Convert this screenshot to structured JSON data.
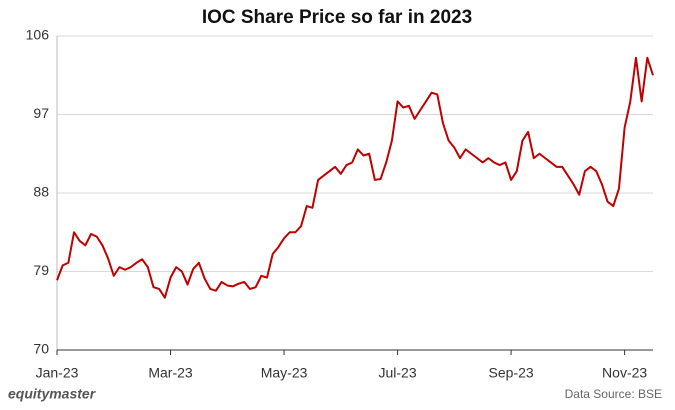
{
  "chart_data": {
    "type": "line",
    "title": "IOC Share Price so far in 2023",
    "series": [
      {
        "name": "IOC",
        "color": "#c00000",
        "values": [
          78,
          79.7,
          80,
          83.5,
          82.5,
          82,
          83.3,
          83,
          82,
          80.5,
          78.5,
          79.5,
          79.2,
          79.5,
          80,
          80.4,
          79.5,
          77.2,
          77,
          76,
          78.3,
          79.5,
          79,
          77.5,
          79.3,
          80,
          78.2,
          77,
          76.8,
          77.8,
          77.4,
          77.3,
          77.6,
          77.8,
          77,
          77.2,
          78.5,
          78.3,
          81,
          81.8,
          82.8,
          83.5,
          83.5,
          84.2,
          86.5,
          86.3,
          89.5,
          90,
          90.5,
          91,
          90.2,
          91.2,
          91.5,
          93,
          92.3,
          92.5,
          89.5,
          89.6,
          91.5,
          94,
          98.5,
          97.8,
          98,
          96.5,
          97.5,
          98.5,
          99.5,
          99.3,
          96,
          94,
          93.2,
          92,
          93,
          92.5,
          92,
          91.5,
          92,
          91.5,
          91.2,
          91.5,
          89.5,
          90.5,
          94,
          95,
          92,
          92.5,
          92,
          91.5,
          91,
          91,
          90,
          89,
          87.8,
          90.5,
          91,
          90.5,
          89,
          87,
          86.5,
          88.5,
          95.5,
          98.5,
          103.5,
          98.5,
          103.5,
          101.5
        ]
      }
    ],
    "xlim": [
      0,
      105
    ],
    "xticks": [
      {
        "value": 0,
        "label": "Jan-23"
      },
      {
        "value": 20,
        "label": "Mar-23"
      },
      {
        "value": 40,
        "label": "May-23"
      },
      {
        "value": 60,
        "label": "Jul-23"
      },
      {
        "value": 80,
        "label": "Sep-23"
      },
      {
        "value": 100,
        "label": "Nov-23"
      }
    ],
    "ylim": [
      70,
      106
    ],
    "yticks": [
      70,
      79,
      88,
      97,
      106
    ],
    "grid": true,
    "brand": "equitymaster",
    "source": "Data Source: BSE"
  }
}
